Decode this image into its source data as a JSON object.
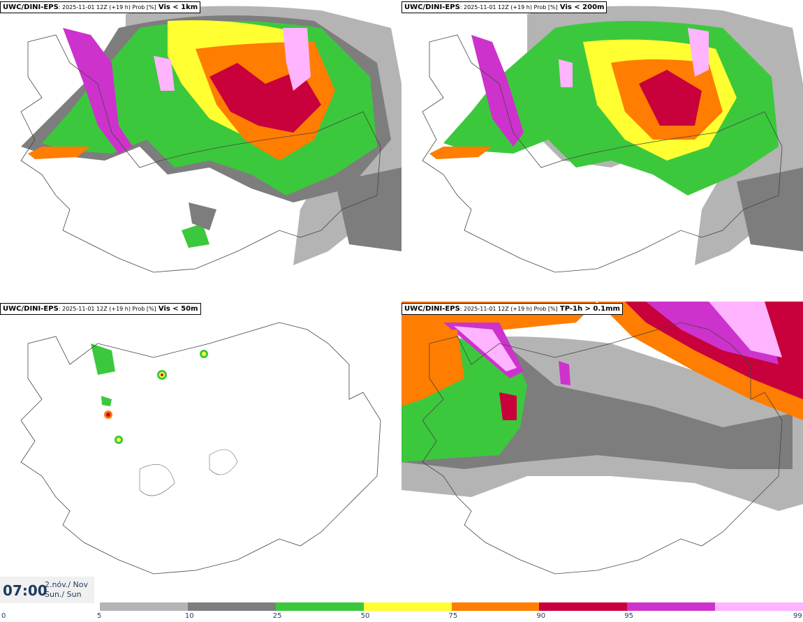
{
  "panels": [
    {
      "source": "UWC/DINI-EPS",
      "meta": ": 2025-11-01 12Z (+19 h) Prob [%]",
      "variable": "Vis < 1km"
    },
    {
      "source": "UWC/DINI-EPS",
      "meta": ": 2025-11-01 12Z (+19 h) Prob [%]",
      "variable": "Vis < 200m"
    },
    {
      "source": "UWC/DINI-EPS",
      "meta": ": 2025-11-01 12Z (+19 h) Prob [%]",
      "variable": "Vis < 50m"
    },
    {
      "source": "UWC/DINI-EPS",
      "meta": ": 2025-11-01 12Z (+19 h) Prob [%]",
      "variable": "TP-1h > 0.1mm"
    }
  ],
  "valid_time": {
    "time": "07:00",
    "date_line1": "2.nóv./ Nov",
    "date_line2": "Sun./ Sun"
  },
  "colorbar": {
    "ticks": [
      "0",
      "5",
      "10",
      "25",
      "50",
      "75",
      "90",
      "95",
      "99"
    ],
    "colors": [
      "#ffffff",
      "#b4b4b4",
      "#7d7d7d",
      "#3cc83c",
      "#ffff32",
      "#ff7d00",
      "#c8003c",
      "#cd32cd",
      "#ffb4ff"
    ]
  }
}
